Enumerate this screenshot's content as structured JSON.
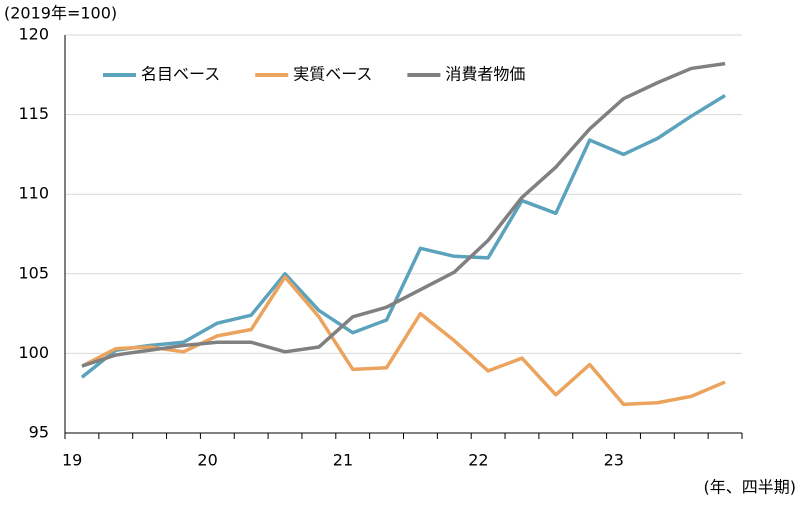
{
  "chart_data": {
    "type": "line",
    "y_unit_label": "(2019年=100)",
    "x_unit_label": "(年、四半期)",
    "categories": [
      "19",
      null,
      null,
      null,
      "20",
      null,
      null,
      null,
      "21",
      null,
      null,
      null,
      "22",
      null,
      null,
      null,
      "23",
      null,
      null,
      null
    ],
    "series": [
      {
        "name": "名目ベース",
        "color": "#5ba3bd",
        "values": [
          98.5,
          100.2,
          100.5,
          100.7,
          101.9,
          102.4,
          105.0,
          102.7,
          101.3,
          102.1,
          106.6,
          106.1,
          106.0,
          109.6,
          108.8,
          113.4,
          112.5,
          113.5,
          114.9,
          116.2
        ]
      },
      {
        "name": "実質ベース",
        "color": "#eba35d",
        "values": [
          99.2,
          100.3,
          100.4,
          100.1,
          101.1,
          101.5,
          104.8,
          102.3,
          99.0,
          99.1,
          102.5,
          100.8,
          98.9,
          99.7,
          97.4,
          99.3,
          96.8,
          96.9,
          97.3,
          98.2
        ]
      },
      {
        "name": "消費者物価",
        "color": "#808080",
        "values": [
          99.2,
          99.9,
          100.2,
          100.5,
          100.7,
          100.7,
          100.1,
          100.4,
          102.3,
          102.9,
          104.0,
          105.1,
          107.1,
          109.8,
          111.7,
          114.1,
          116.0,
          117.0,
          117.9,
          118.2
        ]
      }
    ],
    "ylim": [
      95,
      120
    ],
    "yticks": [
      95,
      100,
      105,
      110,
      115,
      120
    ],
    "grid": true,
    "legend": "upper left"
  }
}
